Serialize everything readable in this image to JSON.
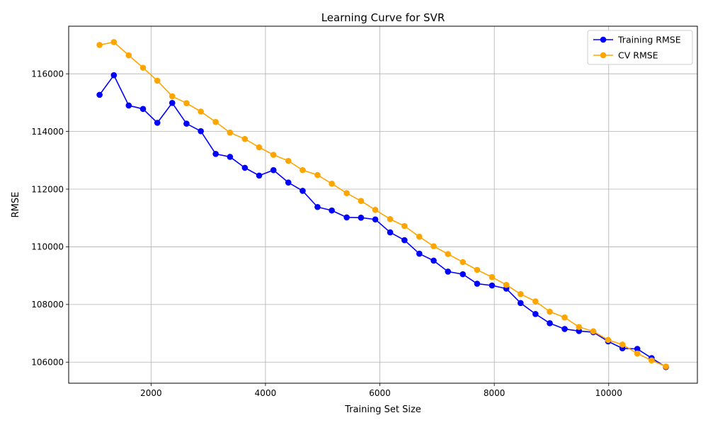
{
  "chart_data": {
    "type": "line",
    "title": "Learning Curve for SVR",
    "xlabel": "Training Set Size",
    "ylabel": "RMSE",
    "xlim": [
      560,
      11550
    ],
    "ylim": [
      105270,
      117650
    ],
    "xticks": [
      2000,
      4000,
      6000,
      8000,
      10000
    ],
    "yticks": [
      106000,
      108000,
      110000,
      112000,
      114000,
      116000
    ],
    "grid": true,
    "legend_position": "top-right",
    "x": [
      1100,
      1350,
      1610,
      1860,
      2110,
      2370,
      2620,
      2870,
      3130,
      3380,
      3640,
      3890,
      4140,
      4400,
      4650,
      4910,
      5160,
      5420,
      5670,
      5920,
      6180,
      6430,
      6690,
      6940,
      7190,
      7450,
      7700,
      7960,
      8210,
      8460,
      8720,
      8970,
      9230,
      9480,
      9730,
      9990,
      10240,
      10500,
      10750,
      11000
    ],
    "series": [
      {
        "name": "Training RMSE",
        "color": "#0000ff",
        "values": [
          115270,
          115950,
          114900,
          114780,
          114300,
          114990,
          114270,
          114010,
          113220,
          113120,
          112740,
          112470,
          112660,
          112230,
          111940,
          111380,
          111260,
          111020,
          111010,
          110950,
          110500,
          110230,
          109760,
          109520,
          109140,
          109050,
          108720,
          108660,
          108550,
          108050,
          107670,
          107350,
          107150,
          107080,
          107040,
          106720,
          106480,
          106460,
          106140,
          105830
        ]
      },
      {
        "name": "CV RMSE",
        "color": "#ffa500",
        "values": [
          117000,
          117100,
          116640,
          116210,
          115760,
          115220,
          114980,
          114690,
          114330,
          113960,
          113740,
          113450,
          113190,
          112980,
          112660,
          112490,
          112190,
          111860,
          111590,
          111280,
          110960,
          110720,
          110350,
          110020,
          109750,
          109470,
          109200,
          108950,
          108680,
          108360,
          108110,
          107750,
          107550,
          107220,
          107070,
          106770,
          106610,
          106300,
          106060,
          105850
        ]
      }
    ]
  }
}
